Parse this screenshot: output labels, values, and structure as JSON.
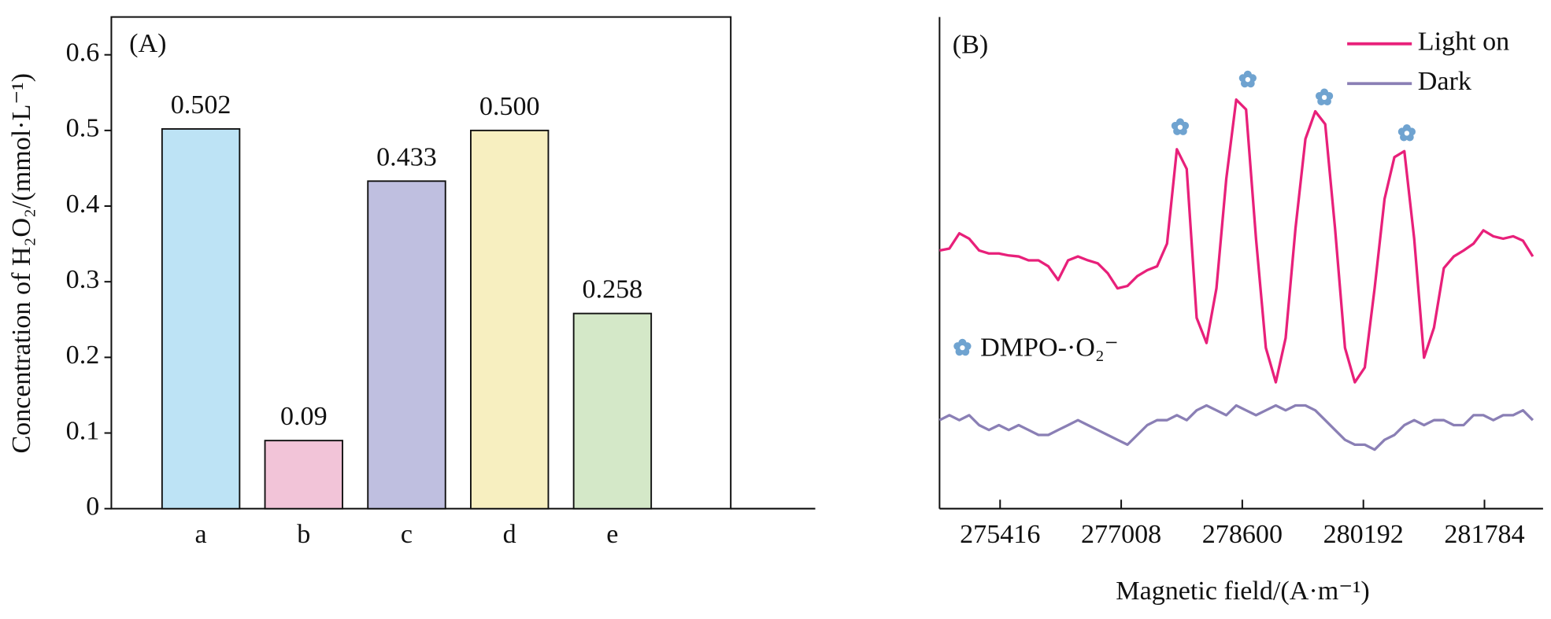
{
  "chart_data": [
    {
      "type": "bar",
      "panel_label": "(A)",
      "y_label": "Concentration of H₂O₂/(mmol·L⁻¹)",
      "categories": [
        "a",
        "b",
        "c",
        "d",
        "e"
      ],
      "values": [
        0.502,
        0.09,
        0.433,
        0.5,
        0.258
      ],
      "value_labels": [
        "0.502",
        "0.09",
        "0.433",
        "0.500",
        "0.258"
      ],
      "colors": [
        "#bde3f5",
        "#f2c4d8",
        "#bfbfe0",
        "#f7efc0",
        "#d4e8c8"
      ],
      "ylim": [
        0,
        0.65
      ],
      "yticks": [
        0,
        0.1,
        0.2,
        0.3,
        0.4,
        0.5,
        0.6
      ]
    },
    {
      "type": "line",
      "panel_label": "(B)",
      "x_label": "Magnetic field/(A·m⁻¹)",
      "annotation": "DMPO-·O₂⁻",
      "legend": "upper right",
      "x": [
        274620,
        274750,
        274880,
        275010,
        275140,
        275270,
        275400,
        275530,
        275660,
        275790,
        275920,
        276050,
        276180,
        276310,
        276440,
        276570,
        276700,
        276830,
        276960,
        277090,
        277220,
        277350,
        277480,
        277610,
        277740,
        277870,
        278000,
        278130,
        278260,
        278390,
        278520,
        278650,
        278780,
        278910,
        279040,
        279170,
        279300,
        279430,
        279560,
        279690,
        279820,
        279950,
        280080,
        280210,
        280340,
        280470,
        280600,
        280730,
        280860,
        280990,
        281120,
        281250,
        281380,
        281510,
        281640,
        281770,
        281900,
        282030,
        282160,
        282290,
        282420
      ],
      "series": [
        {
          "name": "Light on",
          "color": "#e8207a",
          "values": [
            52.5,
            52.9,
            56.0,
            54.9,
            52.5,
            51.9,
            51.9,
            51.5,
            51.3,
            50.5,
            50.5,
            49.3,
            46.5,
            50.5,
            51.3,
            50.5,
            49.9,
            47.9,
            44.8,
            45.3,
            47.3,
            48.5,
            49.3,
            53.9,
            73.1,
            69.1,
            38.8,
            33.7,
            44.8,
            67.1,
            83.2,
            81.2,
            54.9,
            32.7,
            25.7,
            34.7,
            57.0,
            75.2,
            80.8,
            78.2,
            57.0,
            32.7,
            25.7,
            28.7,
            44.8,
            63.0,
            71.5,
            72.7,
            54.9,
            30.7,
            36.8,
            48.9,
            51.3,
            52.5,
            53.9,
            56.6,
            55.4,
            54.9,
            55.4,
            54.5,
            51.3
          ]
        },
        {
          "name": "Dark",
          "color": "#8a7fb5",
          "values": [
            18,
            19,
            18,
            19,
            17,
            16,
            17,
            16,
            17,
            16,
            15,
            15,
            16,
            17,
            18,
            17,
            16,
            15,
            14,
            13,
            15,
            17,
            18,
            18,
            19,
            18,
            20,
            21,
            20,
            19,
            21,
            20,
            19,
            20,
            21,
            20,
            21,
            21,
            20,
            18,
            16,
            14,
            13,
            13,
            12,
            14,
            15,
            17,
            18,
            17,
            18,
            18,
            17,
            17,
            19,
            19,
            18,
            19,
            19,
            20,
            18
          ]
        }
      ],
      "xlim": [
        274620,
        282554
      ],
      "xticks": [
        275416,
        277008,
        278600,
        280192,
        281784
      ],
      "ylim": [
        0,
        100
      ]
    }
  ]
}
